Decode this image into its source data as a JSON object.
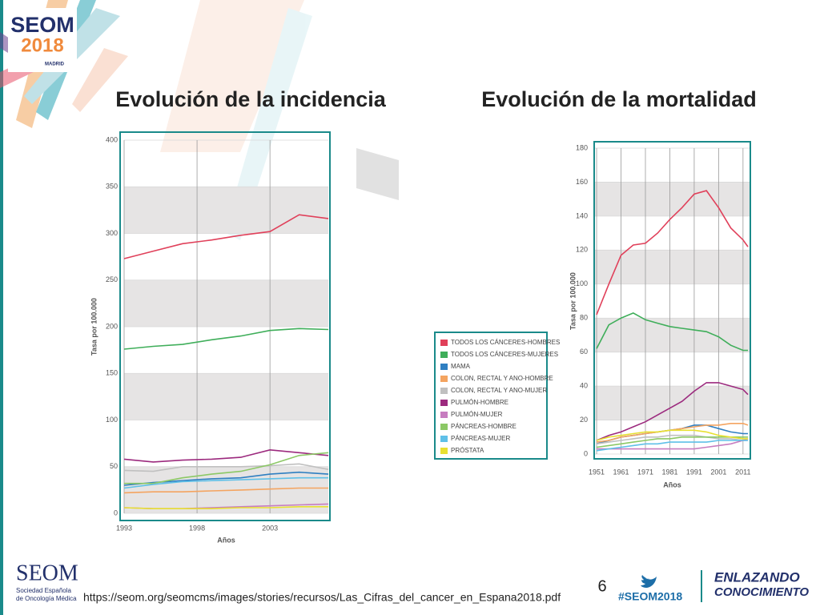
{
  "slide": {
    "logo": {
      "name": "SEOM",
      "year": "2018",
      "city": "MADRID"
    },
    "society": {
      "name": "SEOM",
      "line1": "Sociedad Española",
      "line2": "de Oncología Médica"
    },
    "url": "https://seom.org/seomcms/images/stories/recursos/Las_Cifras_del_cancer_en_Espana2018.pdf",
    "page_number": "6",
    "hashtag": "#SEOM2018",
    "slogan": [
      "ENLAZANDO",
      "CONOCIMIENTO"
    ]
  },
  "chart_data": [
    {
      "type": "line",
      "title": "Evolución de la incidencia",
      "x_label": "Años",
      "y_label": "Tasa por 100.000",
      "x": [
        1993,
        1995,
        1997,
        1999,
        2001,
        2003,
        2005,
        2007
      ],
      "xlim": [
        1993,
        2007
      ],
      "xticks": [
        1993,
        1998,
        2003
      ],
      "ylim": [
        0,
        400
      ],
      "yticks": [
        0,
        50,
        100,
        150,
        200,
        250,
        300,
        350,
        400
      ],
      "grid": true,
      "series": [
        {
          "name": "TODOS LOS CÁNCERES-HOMBRES",
          "color": "#e0405a",
          "values": [
            273,
            281,
            289,
            293,
            298,
            302,
            320,
            316
          ]
        },
        {
          "name": "TODOS LOS CÁNCERES-MUJERES",
          "color": "#3fae5a",
          "values": [
            176,
            179,
            181,
            186,
            190,
            196,
            198,
            197
          ]
        },
        {
          "name": "MAMA",
          "color": "#2f7fc1",
          "values": [
            30,
            33,
            35,
            37,
            38,
            42,
            44,
            42
          ]
        },
        {
          "name": "COLON, RECTAL Y ANO-HOMBRE",
          "color": "#f4a460",
          "values": [
            22,
            23,
            23,
            24,
            25,
            26,
            27,
            27
          ]
        },
        {
          "name": "COLON, RECTAL Y ANO-MUJER",
          "color": "#c0c0c0",
          "values": [
            46,
            45,
            50,
            50,
            50,
            51,
            53,
            47
          ]
        },
        {
          "name": "PULMÓN-HOMBRE",
          "color": "#9c2a7e",
          "values": [
            58,
            55,
            57,
            58,
            60,
            68,
            65,
            62
          ]
        },
        {
          "name": "PULMÓN-MUJER",
          "color": "#c77dc0",
          "values": [
            6,
            5,
            5,
            6,
            7,
            8,
            9,
            10
          ]
        },
        {
          "name": "PÁNCREAS-HOMBRE",
          "color": "#8cc866",
          "values": [
            32,
            32,
            38,
            42,
            45,
            52,
            62,
            65
          ]
        },
        {
          "name": "PÁNCREAS-MUJER",
          "color": "#5fc0e8",
          "values": [
            27,
            31,
            34,
            35,
            36,
            37,
            38,
            38
          ]
        },
        {
          "name": "PRÓSTATA",
          "color": "#e8e032",
          "values": [
            6,
            5,
            5,
            5,
            6,
            6,
            7,
            7
          ]
        }
      ]
    },
    {
      "type": "line",
      "title": "Evolución de la mortalidad",
      "x_label": "Años",
      "y_label": "Tasa por 100.000",
      "x": [
        1951,
        1956,
        1961,
        1966,
        1971,
        1976,
        1981,
        1986,
        1991,
        1996,
        2001,
        2006,
        2011,
        2013
      ],
      "xlim": [
        1950,
        2014
      ],
      "xticks": [
        1951,
        1961,
        1971,
        1981,
        1991,
        2001,
        2011
      ],
      "ylim": [
        0,
        180
      ],
      "yticks": [
        0,
        20,
        40,
        60,
        80,
        100,
        120,
        140,
        160,
        180
      ],
      "grid": true,
      "series": [
        {
          "values": [
            82,
            100,
            117,
            123,
            124,
            130,
            138,
            145,
            153,
            155,
            145,
            133,
            126,
            122
          ]
        },
        {
          "values": [
            62,
            76,
            80,
            83,
            79,
            77,
            75,
            74,
            73,
            72,
            69,
            64,
            61,
            61
          ]
        },
        {
          "values": [
            6,
            8,
            10,
            11,
            12,
            13,
            14,
            15,
            17,
            17,
            15,
            13,
            12,
            12
          ]
        },
        {
          "values": [
            7,
            8,
            10,
            11,
            12,
            13,
            14,
            15,
            16,
            17,
            17,
            18,
            18,
            17
          ]
        },
        {
          "values": [
            6,
            7,
            8,
            9,
            10,
            10,
            11,
            11,
            11,
            10,
            9,
            9,
            8,
            8
          ]
        },
        {
          "values": [
            8,
            11,
            13,
            16,
            19,
            23,
            27,
            31,
            37,
            42,
            42,
            40,
            38,
            35
          ]
        },
        {
          "values": [
            3,
            3,
            3,
            3,
            3,
            3,
            3,
            3,
            3,
            4,
            5,
            6,
            8,
            9
          ]
        },
        {
          "values": [
            4,
            5,
            6,
            7,
            8,
            9,
            9,
            10,
            10,
            10,
            10,
            10,
            10,
            10
          ]
        },
        {
          "values": [
            2,
            3,
            4,
            5,
            6,
            6,
            7,
            7,
            7,
            7,
            8,
            8,
            8,
            8
          ]
        },
        {
          "values": [
            8,
            10,
            11,
            12,
            13,
            13,
            14,
            14,
            14,
            13,
            11,
            10,
            9,
            9
          ]
        }
      ]
    }
  ]
}
